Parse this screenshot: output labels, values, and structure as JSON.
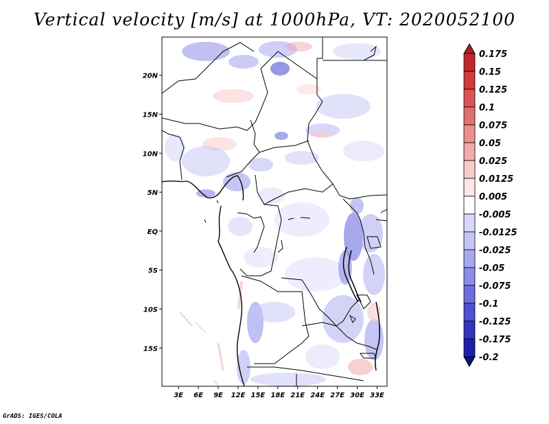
{
  "title": "Vertical velocity [m/s] at 1000hPa, VT: 2020052100",
  "footer": "GrADS: IGES/COLA",
  "map": {
    "lat_labels": [
      "20N",
      "15N",
      "10N",
      "5N",
      "EQ",
      "5S",
      "10S",
      "15S"
    ],
    "lon_labels": [
      "3E",
      "6E",
      "9E",
      "12E",
      "15E",
      "18E",
      "21E",
      "24E",
      "27E",
      "30E",
      "33E"
    ],
    "lat_values": [
      20,
      15,
      10,
      5,
      0,
      -5,
      -10,
      -15
    ],
    "lon_values": [
      3,
      6,
      9,
      12,
      15,
      18,
      21,
      24,
      27,
      30,
      33
    ],
    "extent": {
      "lon": [
        0.5,
        34.5
      ],
      "lat": [
        -19.9,
        24.9
      ]
    }
  },
  "colorbar": {
    "labels": [
      "0.175",
      "0.15",
      "0.125",
      "0.1",
      "0.075",
      "0.05",
      "0.025",
      "0.0125",
      "0.005",
      "-0.005",
      "-0.0125",
      "-0.025",
      "-0.05",
      "-0.075",
      "-0.1",
      "-0.125",
      "-0.175",
      "-0.2"
    ],
    "colors": [
      "#b01e24",
      "#c3272d",
      "#d13a3a",
      "#dc5454",
      "#e27070",
      "#ec8e8e",
      "#f3aaaa",
      "#f9caca",
      "#fde6e6",
      "#ffffff",
      "#d8d8fa",
      "#c4c4f6",
      "#a8a8f0",
      "#8c8ce8",
      "#6e6ee0",
      "#5050d2",
      "#3434c0",
      "#1e1eae",
      "#10108c"
    ]
  }
}
